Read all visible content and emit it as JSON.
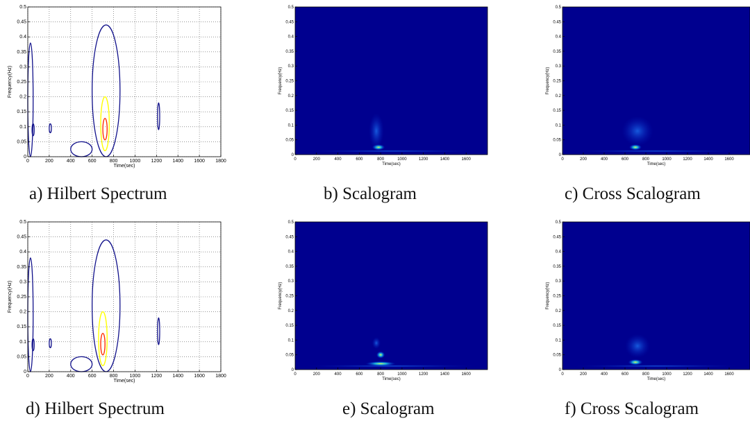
{
  "chart_data": [
    {
      "type": "contour",
      "caption": "a) Hilbert Spectrum",
      "xlabel": "Time(sec)",
      "ylabel": "Frequency(Hz)",
      "xlim": [
        0,
        1800
      ],
      "ylim": [
        0,
        0.5
      ],
      "xticks": [
        0,
        200,
        400,
        600,
        800,
        1000,
        1200,
        1400,
        1600,
        1800
      ],
      "yticks": [
        0,
        0.05,
        0.1,
        0.15,
        0.2,
        0.25,
        0.3,
        0.35,
        0.4,
        0.45,
        0.5
      ],
      "grid": true,
      "colormap": "jet",
      "features": [
        {
          "x": [
            0,
            50
          ],
          "y": [
            0.0,
            0.38
          ],
          "intensity": "low"
        },
        {
          "x": [
            40,
            60
          ],
          "y": [
            0.07,
            0.11
          ],
          "intensity": "low"
        },
        {
          "x": [
            200,
            220
          ],
          "y": [
            0.08,
            0.11
          ],
          "intensity": "low"
        },
        {
          "x": [
            400,
            600
          ],
          "y": [
            0.0,
            0.05
          ],
          "intensity": "low"
        },
        {
          "x": [
            600,
            860
          ],
          "y": [
            0.0,
            0.44
          ],
          "intensity": "medium"
        },
        {
          "x": [
            680,
            760
          ],
          "y": [
            0.02,
            0.2
          ],
          "intensity": "high"
        },
        {
          "x": [
            1210,
            1230
          ],
          "y": [
            0.09,
            0.18
          ],
          "intensity": "low"
        }
      ]
    },
    {
      "type": "heatmap",
      "caption": "b) Scalogram",
      "xlabel": "Time(sec)",
      "ylabel": "Frequency(Hz)",
      "xlim": [
        0,
        1800
      ],
      "ylim": [
        0,
        0.5
      ],
      "xticks": [
        0,
        200,
        400,
        600,
        800,
        1000,
        1200,
        1400,
        1600
      ],
      "yticks": [
        0,
        0.05,
        0.1,
        0.15,
        0.2,
        0.25,
        0.3,
        0.35,
        0.4,
        0.45,
        0.5
      ],
      "grid": false,
      "colormap": "jet",
      "background": "#00008f",
      "features": [
        {
          "x": 780,
          "y": 0.025,
          "rx": 60,
          "ry": 0.01,
          "intensity": "medium"
        },
        {
          "x": 760,
          "y": 0.08,
          "rx": 70,
          "ry": 0.06,
          "intensity": "low"
        },
        {
          "x": 900,
          "y": 0.012,
          "rx": 800,
          "ry": 0.004,
          "intensity": "low"
        }
      ]
    },
    {
      "type": "heatmap",
      "caption": "c) Cross Scalogram",
      "xlabel": "Time(sec)",
      "ylabel": "Frequency(Hz)",
      "xlim": [
        0,
        1800
      ],
      "ylim": [
        0,
        0.5
      ],
      "xticks": [
        0,
        200,
        400,
        600,
        800,
        1000,
        1200,
        1400,
        1600
      ],
      "yticks": [
        0,
        0.05,
        0.1,
        0.15,
        0.2,
        0.25,
        0.3,
        0.35,
        0.4,
        0.45,
        0.5
      ],
      "grid": false,
      "colormap": "jet",
      "background": "#00008f",
      "features": [
        {
          "x": 700,
          "y": 0.025,
          "rx": 60,
          "ry": 0.01,
          "intensity": "medium"
        },
        {
          "x": 720,
          "y": 0.08,
          "rx": 150,
          "ry": 0.05,
          "intensity": "low"
        },
        {
          "x": 900,
          "y": 0.012,
          "rx": 800,
          "ry": 0.004,
          "intensity": "low"
        }
      ]
    },
    {
      "type": "contour",
      "caption": "d) Hilbert Spectrum",
      "xlabel": "Time(sec)",
      "ylabel": "Frequency(Hz)",
      "xlim": [
        0,
        1800
      ],
      "ylim": [
        0,
        0.5
      ],
      "xticks": [
        0,
        200,
        400,
        600,
        800,
        1000,
        1200,
        1400,
        1600,
        1800
      ],
      "yticks": [
        0,
        0.05,
        0.1,
        0.15,
        0.2,
        0.25,
        0.3,
        0.35,
        0.4,
        0.45,
        0.5
      ],
      "grid": true,
      "colormap": "jet",
      "features": [
        {
          "x": [
            0,
            50
          ],
          "y": [
            0.0,
            0.38
          ],
          "intensity": "low"
        },
        {
          "x": [
            40,
            60
          ],
          "y": [
            0.07,
            0.11
          ],
          "intensity": "low"
        },
        {
          "x": [
            200,
            220
          ],
          "y": [
            0.08,
            0.11
          ],
          "intensity": "low"
        },
        {
          "x": [
            400,
            600
          ],
          "y": [
            0.0,
            0.05
          ],
          "intensity": "low"
        },
        {
          "x": [
            600,
            860
          ],
          "y": [
            0.0,
            0.44
          ],
          "intensity": "medium"
        },
        {
          "x": [
            660,
            740
          ],
          "y": [
            0.02,
            0.2
          ],
          "intensity": "high"
        },
        {
          "x": [
            1210,
            1230
          ],
          "y": [
            0.09,
            0.18
          ],
          "intensity": "low"
        }
      ]
    },
    {
      "type": "heatmap",
      "caption": "e) Scalogram",
      "xlabel": "Time(sec)",
      "ylabel": "Frequency(Hz)",
      "xlim": [
        0,
        1800
      ],
      "ylim": [
        0,
        0.5
      ],
      "xticks": [
        0,
        200,
        400,
        600,
        800,
        1000,
        1200,
        1400,
        1600
      ],
      "yticks": [
        0,
        0.05,
        0.1,
        0.15,
        0.2,
        0.25,
        0.3,
        0.35,
        0.4,
        0.45,
        0.5
      ],
      "grid": false,
      "colormap": "jet",
      "background": "#00008f",
      "features": [
        {
          "x": 800,
          "y": 0.05,
          "rx": 40,
          "ry": 0.012,
          "intensity": "medium"
        },
        {
          "x": 760,
          "y": 0.09,
          "rx": 40,
          "ry": 0.02,
          "intensity": "low"
        },
        {
          "x": 800,
          "y": 0.02,
          "rx": 140,
          "ry": 0.008,
          "intensity": "medium"
        },
        {
          "x": 900,
          "y": 0.012,
          "rx": 800,
          "ry": 0.004,
          "intensity": "low"
        }
      ]
    },
    {
      "type": "heatmap",
      "caption": "f) Cross Scalogram",
      "xlabel": "Time(sec)",
      "ylabel": "Frequency(Hz)",
      "xlim": [
        0,
        1800
      ],
      "ylim": [
        0,
        0.5
      ],
      "xticks": [
        0,
        200,
        400,
        600,
        800,
        1000,
        1200,
        1400,
        1600
      ],
      "yticks": [
        0,
        0.05,
        0.1,
        0.15,
        0.2,
        0.25,
        0.3,
        0.35,
        0.4,
        0.45,
        0.5
      ],
      "grid": false,
      "colormap": "jet",
      "background": "#00008f",
      "features": [
        {
          "x": 700,
          "y": 0.025,
          "rx": 70,
          "ry": 0.01,
          "intensity": "medium"
        },
        {
          "x": 720,
          "y": 0.08,
          "rx": 120,
          "ry": 0.04,
          "intensity": "low"
        },
        {
          "x": 900,
          "y": 0.012,
          "rx": 800,
          "ry": 0.004,
          "intensity": "low"
        }
      ]
    }
  ]
}
